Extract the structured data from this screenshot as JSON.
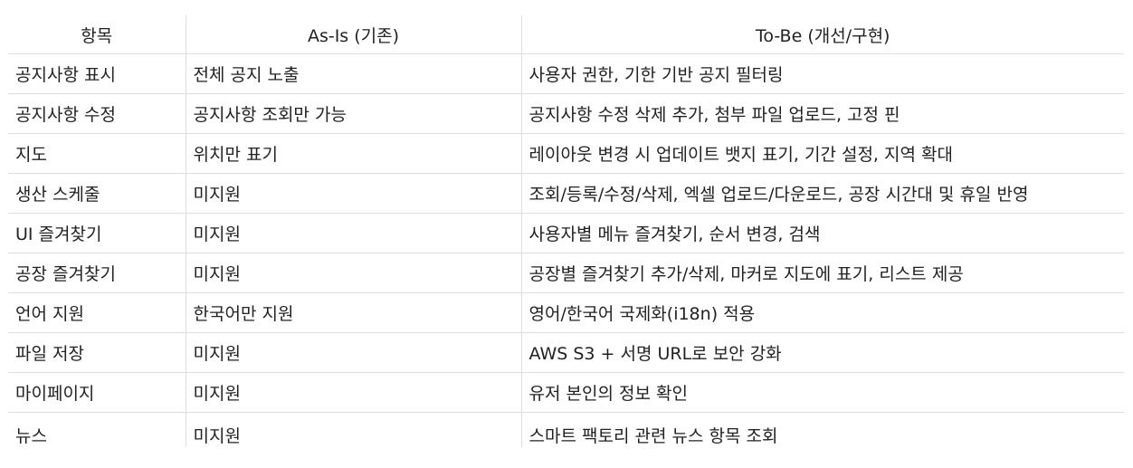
{
  "table": {
    "headers": [
      "항목",
      "As-Is (기존)",
      "To-Be (개선/구현)"
    ],
    "rows": [
      [
        "공지사항 표시",
        "전체 공지 노출",
        "사용자 권한, 기한 기반 공지 필터링"
      ],
      [
        "공지사항 수정",
        "공지사항 조회만 가능",
        "공지사항 수정 삭제 추가, 첨부 파일 업로드, 고정 핀"
      ],
      [
        "지도",
        "위치만 표기",
        "레이아웃 변경 시 업데이트 뱃지 표기, 기간 설정, 지역 확대"
      ],
      [
        "생산 스케줄",
        "미지원",
        "조회/등록/수정/삭제, 엑셀 업로드/다운로드, 공장 시간대 및 휴일 반영"
      ],
      [
        "UI 즐겨찾기",
        "미지원",
        "사용자별 메뉴 즐겨찾기, 순서 변경, 검색"
      ],
      [
        "공장 즐겨찾기",
        "미지원",
        "공장별 즐겨찾기 추가/삭제, 마커로 지도에 표기, 리스트 제공"
      ],
      [
        "언어 지원",
        "한국어만 지원",
        "영어/한국어 국제화(i18n) 적용"
      ],
      [
        "파일 저장",
        "미지원",
        "AWS S3 + 서명 URL로 보안 강화"
      ],
      [
        "마이페이지",
        "미지원",
        "유저 본인의 정보 확인"
      ],
      [
        "뉴스",
        "미지원",
        "스마트 팩토리 관련 뉴스 항목 조회"
      ]
    ]
  }
}
